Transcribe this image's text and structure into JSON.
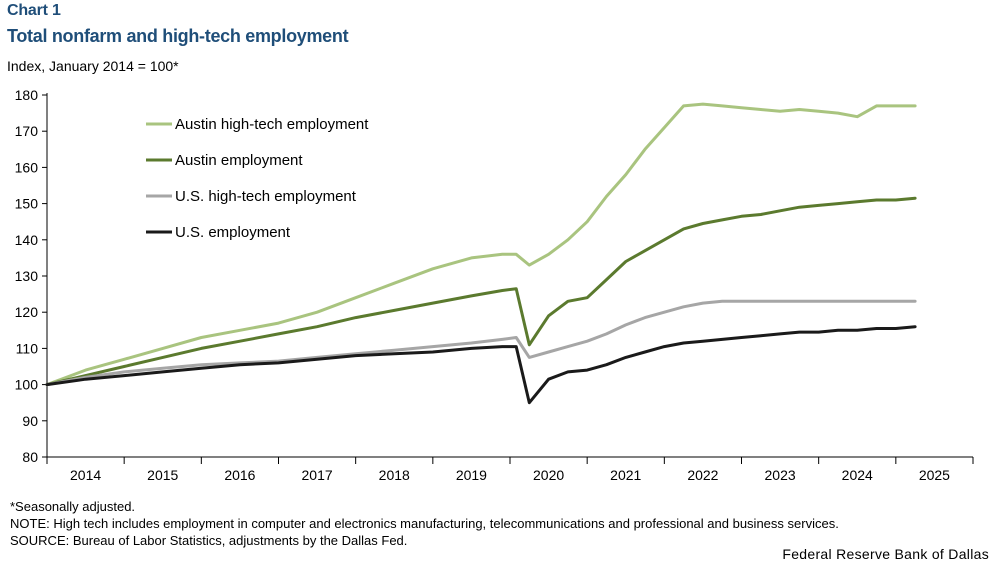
{
  "header": {
    "chart_label": "Chart 1",
    "title": "Total nonfarm and high-tech employment",
    "subtitle": "Index, January 2014 = 100*"
  },
  "notes": {
    "seasonal": "*Seasonally adjusted.",
    "note": "NOTE: High tech includes employment in computer and electronics manufacturing, telecommunications and professional and business services.",
    "source": "SOURCE: Bureau of Labor Statistics, adjustments by the Dallas Fed."
  },
  "credit": "Federal Reserve Bank of Dallas",
  "chart_data": {
    "type": "line",
    "title": "Total nonfarm and high-tech employment",
    "ylabel": "Index, January 2014 = 100*",
    "xlabel": "",
    "ylim": [
      80,
      180
    ],
    "yticks": [
      80,
      90,
      100,
      110,
      120,
      130,
      140,
      150,
      160,
      170,
      180
    ],
    "xlim": [
      2014.0,
      2026.0
    ],
    "xticks": [
      "2014",
      "2015",
      "2016",
      "2017",
      "2018",
      "2019",
      "2020",
      "2021",
      "2022",
      "2023",
      "2024",
      "2025"
    ],
    "grid": false,
    "legend": "top-left",
    "series": [
      {
        "name": "Austin high-tech employment",
        "color": "#a9c47f",
        "x": [
          2014.0,
          2014.5,
          2015.0,
          2015.5,
          2016.0,
          2016.5,
          2017.0,
          2017.5,
          2018.0,
          2018.5,
          2019.0,
          2019.5,
          2019.9,
          2020.08,
          2020.25,
          2020.5,
          2020.75,
          2021.0,
          2021.25,
          2021.5,
          2021.75,
          2022.0,
          2022.25,
          2022.5,
          2022.75,
          2023.0,
          2023.25,
          2023.5,
          2023.75,
          2024.0,
          2024.25,
          2024.5,
          2024.75,
          2025.0,
          2025.25
        ],
        "values": [
          100,
          104,
          107,
          110,
          113,
          115,
          117,
          120,
          124,
          128,
          132,
          135,
          136,
          136,
          133,
          136,
          140,
          145,
          152,
          158,
          165,
          171,
          177,
          177.5,
          177,
          176.5,
          176,
          175.5,
          176,
          175.5,
          175,
          174,
          177,
          177,
          177
        ]
      },
      {
        "name": "Austin employment",
        "color": "#5b7a2e",
        "x": [
          2014.0,
          2014.5,
          2015.0,
          2015.5,
          2016.0,
          2016.5,
          2017.0,
          2017.5,
          2018.0,
          2018.5,
          2019.0,
          2019.5,
          2019.9,
          2020.08,
          2020.25,
          2020.5,
          2020.75,
          2021.0,
          2021.25,
          2021.5,
          2021.75,
          2022.0,
          2022.25,
          2022.5,
          2022.75,
          2023.0,
          2023.25,
          2023.5,
          2023.75,
          2024.0,
          2024.25,
          2024.5,
          2024.75,
          2025.0,
          2025.25
        ],
        "values": [
          100,
          102.5,
          105,
          107.5,
          110,
          112,
          114,
          116,
          118.5,
          120.5,
          122.5,
          124.5,
          126,
          126.5,
          111,
          119,
          123,
          124,
          129,
          134,
          137,
          140,
          143,
          144.5,
          145.5,
          146.5,
          147,
          148,
          149,
          149.5,
          150,
          150.5,
          151,
          151,
          151.5
        ]
      },
      {
        "name": "U.S. high-tech employment",
        "color": "#a6a6a6",
        "x": [
          2014.0,
          2014.5,
          2015.0,
          2015.5,
          2016.0,
          2016.5,
          2017.0,
          2017.5,
          2018.0,
          2018.5,
          2019.0,
          2019.5,
          2019.9,
          2020.08,
          2020.25,
          2020.5,
          2020.75,
          2021.0,
          2021.25,
          2021.5,
          2021.75,
          2022.0,
          2022.25,
          2022.5,
          2022.75,
          2023.0,
          2023.25,
          2023.5,
          2023.75,
          2024.0,
          2024.25,
          2024.5,
          2024.75,
          2025.0,
          2025.25
        ],
        "values": [
          100,
          102,
          103.5,
          104.5,
          105.5,
          106,
          106.5,
          107.5,
          108.5,
          109.5,
          110.5,
          111.5,
          112.5,
          113,
          107.5,
          109,
          110.5,
          112,
          114,
          116.5,
          118.5,
          120,
          121.5,
          122.5,
          123,
          123,
          123,
          123,
          123,
          123,
          123,
          123,
          123,
          123,
          123
        ]
      },
      {
        "name": "U.S. employment",
        "color": "#1a1a1a",
        "x": [
          2014.0,
          2014.5,
          2015.0,
          2015.5,
          2016.0,
          2016.5,
          2017.0,
          2017.5,
          2018.0,
          2018.5,
          2019.0,
          2019.5,
          2019.9,
          2020.08,
          2020.25,
          2020.5,
          2020.75,
          2021.0,
          2021.25,
          2021.5,
          2021.75,
          2022.0,
          2022.25,
          2022.5,
          2022.75,
          2023.0,
          2023.25,
          2023.5,
          2023.75,
          2024.0,
          2024.25,
          2024.5,
          2024.75,
          2025.0,
          2025.25
        ],
        "values": [
          100,
          101.5,
          102.5,
          103.5,
          104.5,
          105.5,
          106,
          107,
          108,
          108.5,
          109,
          110,
          110.5,
          110.5,
          95,
          101.5,
          103.5,
          104,
          105.5,
          107.5,
          109,
          110.5,
          111.5,
          112,
          112.5,
          113,
          113.5,
          114,
          114.5,
          114.5,
          115,
          115,
          115.5,
          115.5,
          116
        ]
      }
    ]
  }
}
